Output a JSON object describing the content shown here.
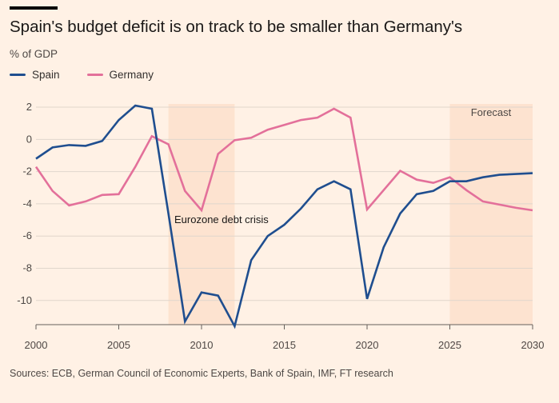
{
  "header": {
    "title": "Spain's budget deficit is on track to be smaller than Germany's",
    "subtitle": "% of GDP"
  },
  "legend": {
    "items": [
      {
        "label": "Spain",
        "color": "#1f4e8f"
      },
      {
        "label": "Germany",
        "color": "#e3709a"
      }
    ]
  },
  "footer": {
    "source": "Sources: ECB, German Council of Economic Experts, Bank of Spain, IMF, FT research"
  },
  "chart_data": {
    "type": "line",
    "title": "Spain's budget deficit is on track to be smaller than Germany's",
    "ylabel": "% of GDP",
    "xlim": [
      2000,
      2030
    ],
    "ylim": [
      -11.5,
      2.2
    ],
    "x_ticks": [
      2000,
      2005,
      2010,
      2015,
      2020,
      2025,
      2030
    ],
    "y_ticks": [
      2,
      0,
      -2,
      -4,
      -6,
      -8,
      -10
    ],
    "grid": "horizontal",
    "legend_position": "top-left",
    "x": [
      2000,
      2001,
      2002,
      2003,
      2004,
      2005,
      2006,
      2007,
      2008,
      2009,
      2010,
      2011,
      2012,
      2013,
      2014,
      2015,
      2016,
      2017,
      2018,
      2019,
      2020,
      2021,
      2022,
      2023,
      2024,
      2025,
      2026,
      2027,
      2028,
      2029,
      2030
    ],
    "series": [
      {
        "name": "Spain",
        "color": "#1f4e8f",
        "values": [
          -1.2,
          -0.5,
          -0.35,
          -0.4,
          -0.1,
          1.2,
          2.1,
          1.9,
          -4.6,
          -11.3,
          -9.5,
          -9.7,
          -11.6,
          -7.5,
          -6.0,
          -5.3,
          -4.3,
          -3.1,
          -2.6,
          -3.1,
          -9.9,
          -6.7,
          -4.6,
          -3.4,
          -3.2,
          -2.6,
          -2.6,
          -2.35,
          -2.2,
          -2.15,
          -2.1
        ]
      },
      {
        "name": "Germany",
        "color": "#e3709a",
        "values": [
          -1.7,
          -3.2,
          -4.1,
          -3.85,
          -3.45,
          -3.4,
          -1.7,
          0.2,
          -0.3,
          -3.2,
          -4.4,
          -0.9,
          -0.05,
          0.1,
          0.6,
          0.9,
          1.2,
          1.35,
          1.9,
          1.35,
          -4.35,
          -3.15,
          -1.95,
          -2.5,
          -2.7,
          -2.35,
          -3.15,
          -3.85,
          -4.05,
          -4.25,
          -4.4
        ]
      }
    ],
    "shaded_regions": [
      {
        "start": 2008,
        "end": 2012,
        "label": "Eurozone debt crisis"
      },
      {
        "start": 2025,
        "end": 2030,
        "label": "Forecast"
      }
    ]
  }
}
